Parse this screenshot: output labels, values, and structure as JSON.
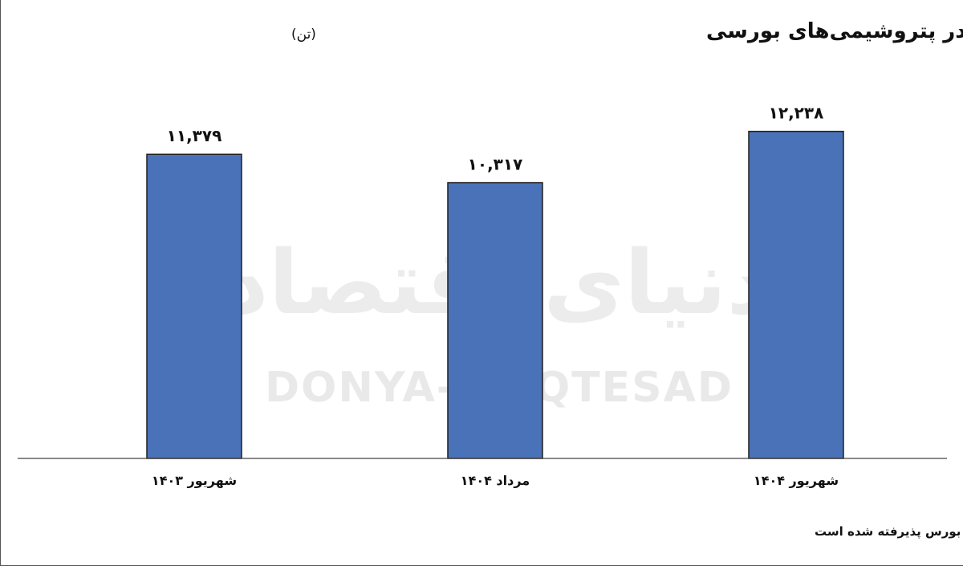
{
  "watermark": {
    "fa": "دنیای اقتصاد",
    "en": "DONYA-E-EQTESAD"
  },
  "chart_data": {
    "type": "bar",
    "title": "حجم تولید پی‌وی‌سی در پتروشیمی‌های بورسی",
    "unit": "(تن)",
    "categories": [
      "شهریور ۱۴۰۳",
      "مرداد ۱۴۰۴",
      "شهریور ۱۴۰۴"
    ],
    "values": [
      11379,
      10317,
      12238
    ],
    "value_labels": [
      "۱۱,۳۷۹",
      "۱۰,۳۱۷",
      "۱۲,۲۳۸"
    ],
    "ylim": [
      0,
      14000
    ],
    "grid": false,
    "bar_color": "#4a72b8",
    "footnote": "میزان کل تولید پی‌وی‌سی در گزارش‌های کدال پتروشیمی‌های تولیدکننده پی‌وی‌سی که در بورس پذیرفته شده است"
  }
}
